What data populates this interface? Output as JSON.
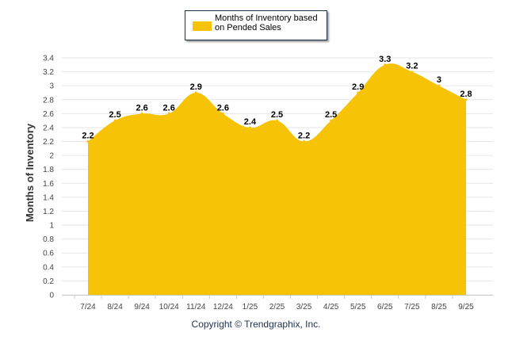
{
  "chart_data": {
    "type": "area",
    "title": "",
    "xlabel": "",
    "ylabel": "Months of Inventory",
    "categories": [
      "7/24",
      "8/24",
      "9/24",
      "10/24",
      "11/24",
      "12/24",
      "1/25",
      "2/25",
      "3/25",
      "4/25",
      "5/25",
      "6/25",
      "7/25",
      "8/25",
      "9/25"
    ],
    "series": [
      {
        "name": "Months of Inventory based on Pended Sales",
        "values": [
          2.2,
          2.5,
          2.6,
          2.6,
          2.9,
          2.6,
          2.4,
          2.5,
          2.2,
          2.5,
          2.9,
          3.3,
          3.2,
          3,
          2.8
        ]
      }
    ],
    "data_labels": [
      "2.2",
      "2.5",
      "2.6",
      "2.6",
      "2.9",
      "2.6",
      "2.4",
      "2.5",
      "2.2",
      "2.5",
      "2.9",
      "3.3",
      "3.2",
      "3",
      "2.8"
    ],
    "ylim": [
      0,
      3.4
    ],
    "yticks": [
      "0",
      "0.2",
      "0.4",
      "0.6",
      "0.8",
      "1",
      "1.2",
      "1.4",
      "1.6",
      "1.8",
      "2",
      "2.2",
      "2.4",
      "2.6",
      "2.8",
      "3",
      "3.2",
      "3.4"
    ],
    "grid": true,
    "legend_position": "top-center",
    "color": "#f7c307"
  },
  "legend": {
    "label_line1": "Months of Inventory based",
    "label_line2": "on Pended Sales"
  },
  "footer": {
    "copyright": "Copyright © Trendgraphix, Inc."
  }
}
